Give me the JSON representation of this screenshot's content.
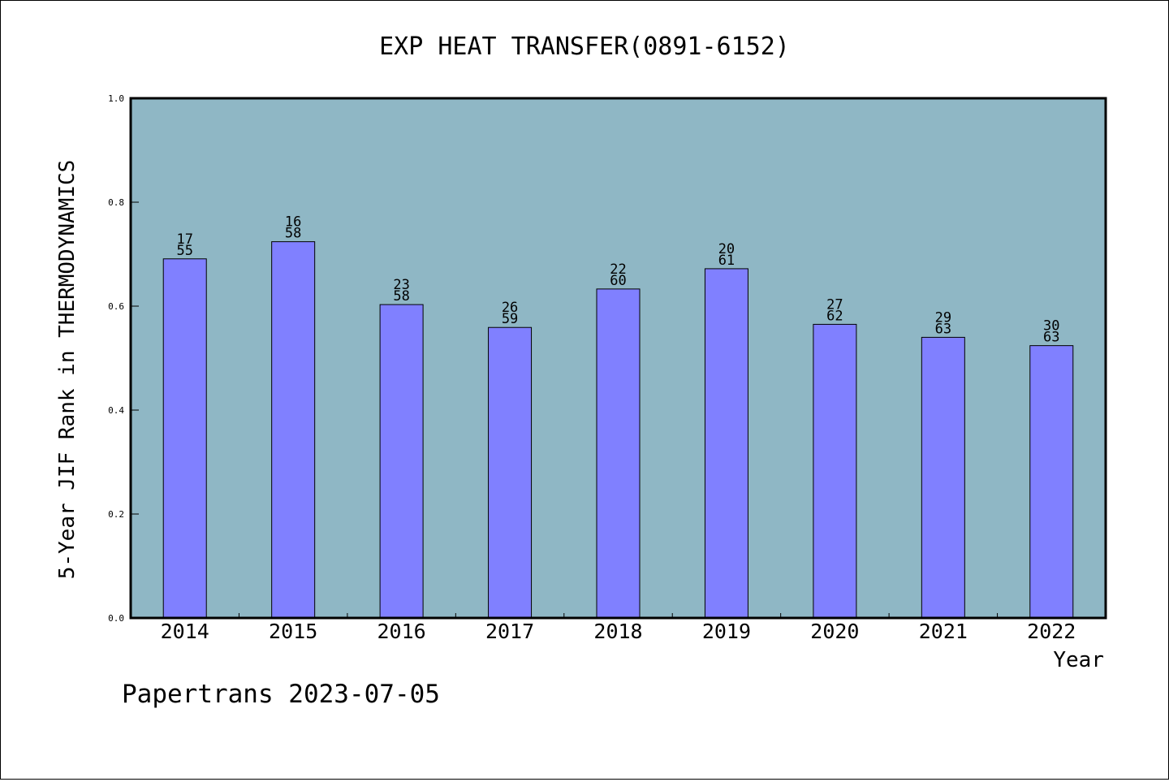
{
  "chart_data": {
    "type": "bar",
    "title": "EXP HEAT TRANSFER(0891-6152)",
    "xlabel": "Year",
    "ylabel": "5-Year JIF Rank in THERMODYNAMICS",
    "ylim": [
      0,
      1.0
    ],
    "yticks": [
      "0.0",
      "0.2",
      "0.4",
      "0.6",
      "0.8",
      "1.0"
    ],
    "categories": [
      "2014",
      "2015",
      "2016",
      "2017",
      "2018",
      "2019",
      "2020",
      "2021",
      "2022"
    ],
    "values": [
      0.691,
      0.724,
      0.603,
      0.559,
      0.633,
      0.672,
      0.565,
      0.54,
      0.524
    ],
    "bar_labels": [
      [
        "17",
        "55"
      ],
      [
        "16",
        "58"
      ],
      [
        "23",
        "58"
      ],
      [
        "26",
        "59"
      ],
      [
        "22",
        "60"
      ],
      [
        "20",
        "61"
      ],
      [
        "27",
        "62"
      ],
      [
        "29",
        "63"
      ],
      [
        "30",
        "63"
      ]
    ],
    "grid": false,
    "colors": {
      "plot_background": "#8fb7c5",
      "bar_fill": "#8080ff",
      "bar_stroke": "#000000"
    }
  },
  "footer": {
    "text": "Papertrans 2023-07-05"
  }
}
